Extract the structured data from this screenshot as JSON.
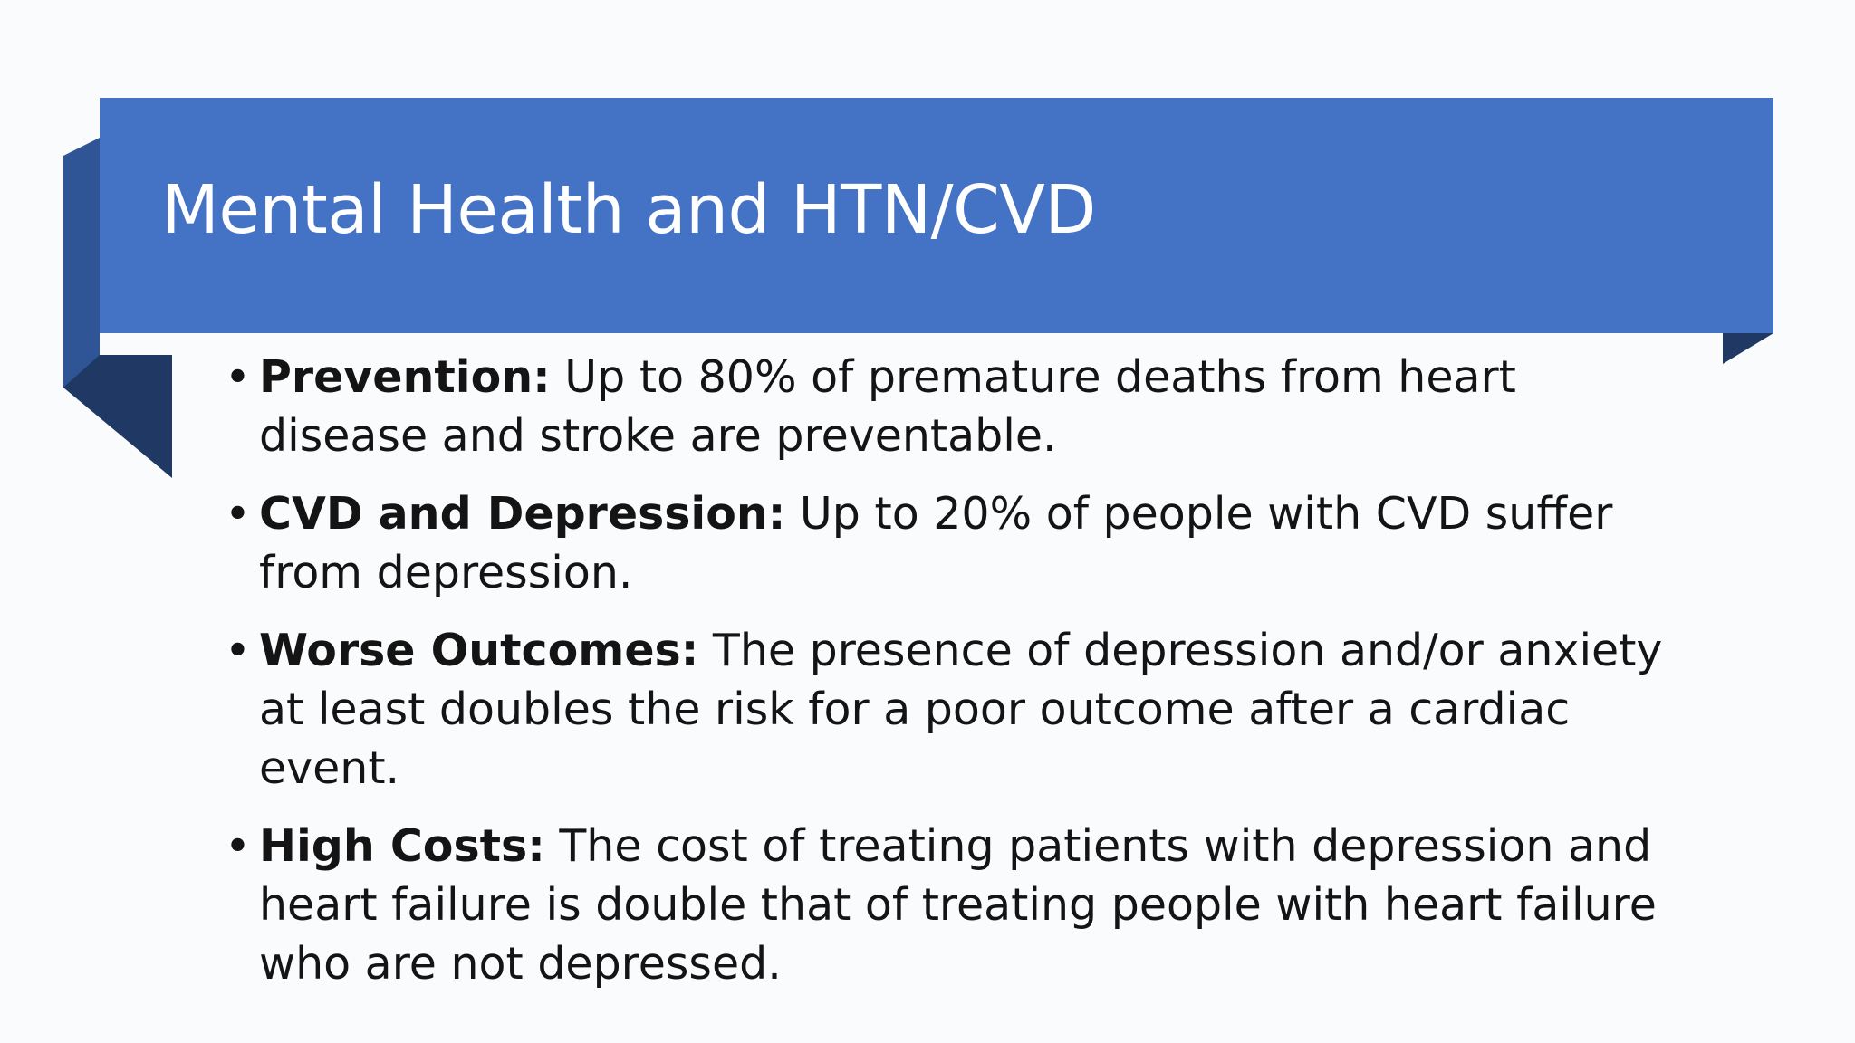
{
  "slide": {
    "title": "Mental Health and HTN/CVD",
    "bullet_symbol": "•",
    "bullets": [
      {
        "heading": "Prevention:",
        "text": " Up to 80% of premature deaths from heart disease and stroke are preventable."
      },
      {
        "heading": "CVD and Depression:",
        "text": " Up to 20% of people with CVD suffer from depression."
      },
      {
        "heading": "Worse Outcomes:",
        "text": " The presence of depression and/or anxiety at least doubles the risk for a poor outcome after a cardiac event."
      },
      {
        "heading": "High Costs:",
        "text": " The cost of treating patients with depression and heart failure is double that of treating people with heart failure who are not depressed."
      }
    ]
  },
  "colors": {
    "background": "#fafbfd",
    "banner": "#4472c4",
    "banner_shadow": "#2f5597",
    "banner_fold": "#1f3864",
    "title_text": "#ffffff",
    "body_text": "#141414"
  }
}
